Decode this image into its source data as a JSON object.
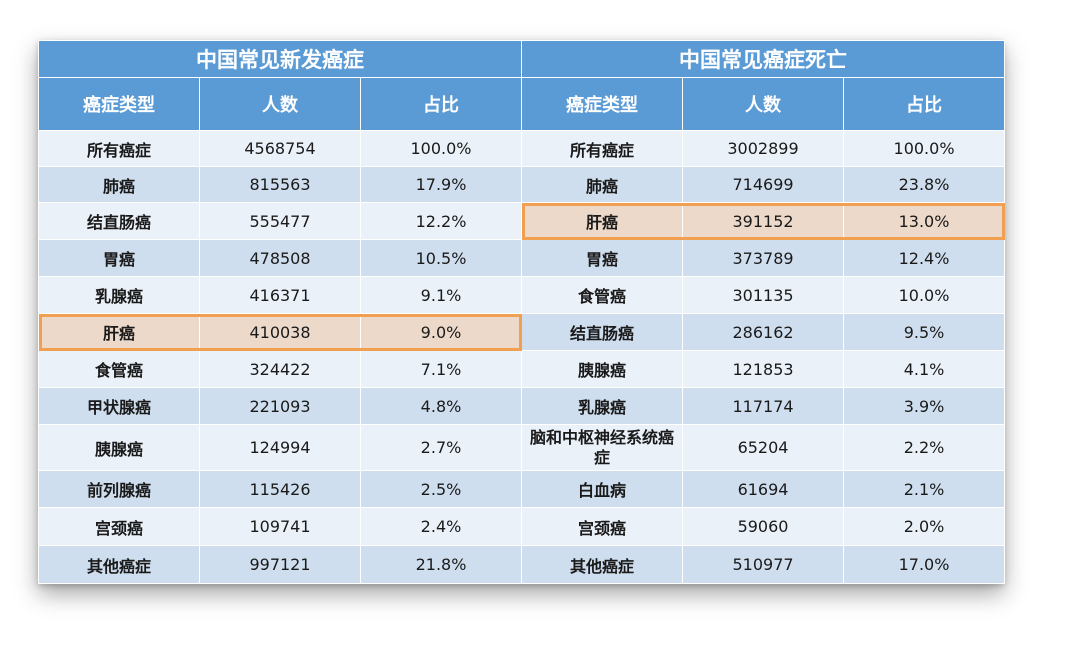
{
  "incidence": {
    "title": "中国常见新发癌症",
    "headers": [
      "癌症类型",
      "人数",
      "占比"
    ],
    "rows": [
      {
        "type": "所有癌症",
        "count": "4568754",
        "pct": "100.0%"
      },
      {
        "type": "肺癌",
        "count": "815563",
        "pct": "17.9%"
      },
      {
        "type": "结直肠癌",
        "count": "555477",
        "pct": "12.2%"
      },
      {
        "type": "胃癌",
        "count": "478508",
        "pct": "10.5%"
      },
      {
        "type": "乳腺癌",
        "count": "416371",
        "pct": "9.1%"
      },
      {
        "type": "肝癌",
        "count": "410038",
        "pct": "9.0%"
      },
      {
        "type": "食管癌",
        "count": "324422",
        "pct": "7.1%"
      },
      {
        "type": "甲状腺癌",
        "count": "221093",
        "pct": "4.8%"
      },
      {
        "type": "胰腺癌",
        "count": "124994",
        "pct": "2.7%"
      },
      {
        "type": "前列腺癌",
        "count": "115426",
        "pct": "2.5%"
      },
      {
        "type": "宫颈癌",
        "count": "109741",
        "pct": "2.4%"
      },
      {
        "type": "其他癌症",
        "count": "997121",
        "pct": "21.8%"
      }
    ]
  },
  "mortality": {
    "title": "中国常见癌症死亡",
    "headers": [
      "癌症类型",
      "人数",
      "占比"
    ],
    "rows": [
      {
        "type": "所有癌症",
        "count": "3002899",
        "pct": "100.0%"
      },
      {
        "type": "肺癌",
        "count": "714699",
        "pct": "23.8%"
      },
      {
        "type": "肝癌",
        "count": "391152",
        "pct": "13.0%"
      },
      {
        "type": "胃癌",
        "count": "373789",
        "pct": "12.4%"
      },
      {
        "type": "食管癌",
        "count": "301135",
        "pct": "10.0%"
      },
      {
        "type": "结直肠癌",
        "count": "286162",
        "pct": "9.5%"
      },
      {
        "type": "胰腺癌",
        "count": "121853",
        "pct": "4.1%"
      },
      {
        "type": "乳腺癌",
        "count": "117174",
        "pct": "3.9%"
      },
      {
        "type": "脑和中枢神经系统癌症",
        "count": "65204",
        "pct": "2.2%"
      },
      {
        "type": "白血病",
        "count": "61694",
        "pct": "2.1%"
      },
      {
        "type": "宫颈癌",
        "count": "59060",
        "pct": "2.0%"
      },
      {
        "type": "其他癌症",
        "count": "510977",
        "pct": "17.0%"
      }
    ]
  },
  "highlight": {
    "incidence_row": 5,
    "mortality_row": 2,
    "fill_color": "#ecd9c9",
    "border_color": "#f0a050"
  },
  "colors": {
    "header_blue": "#5b9bd5",
    "row_light": "#eaf1f9",
    "row_dark": "#cfdeee"
  }
}
